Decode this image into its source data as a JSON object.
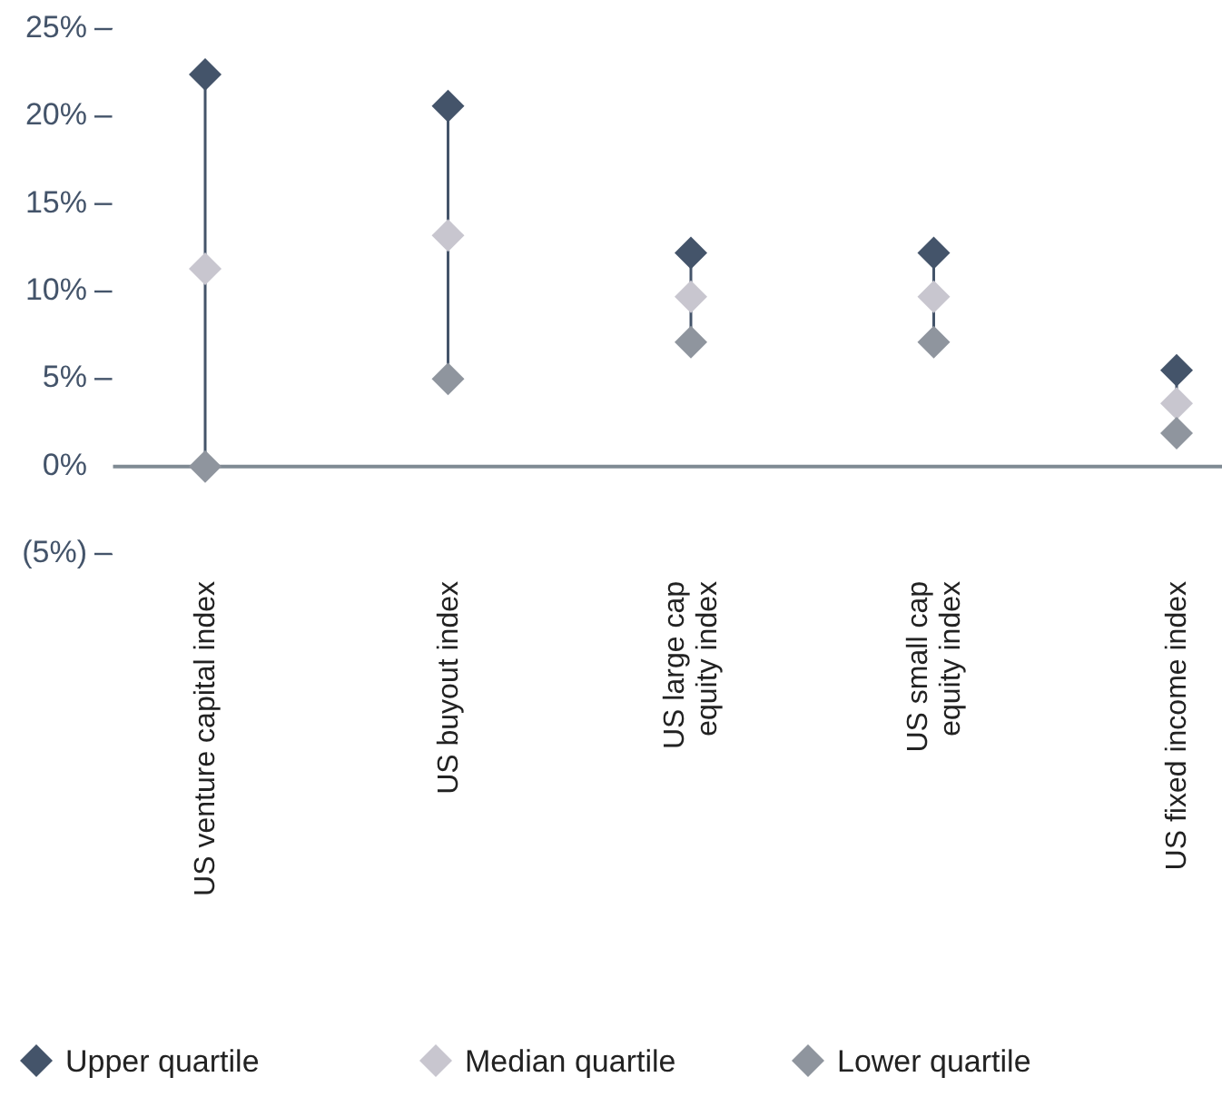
{
  "chart_data": {
    "type": "scatter",
    "categories": [
      "US venture capital index",
      "US buyout index",
      "US large cap\nequity index",
      "US small cap\nequity index",
      "US fixed income index"
    ],
    "series": [
      {
        "name": "Upper quartile",
        "color": "#44546a",
        "values": [
          22.4,
          20.6,
          12.2,
          12.2,
          5.5
        ]
      },
      {
        "name": "Median quartile",
        "color": "#c8c6cf",
        "values": [
          11.3,
          13.2,
          9.7,
          9.7,
          3.6
        ]
      },
      {
        "name": "Lower quartile",
        "color": "#8f959e",
        "values": [
          0,
          5.0,
          7.1,
          7.1,
          1.9
        ]
      }
    ],
    "ylim": [
      -5,
      25
    ],
    "yticks": [
      {
        "value": 25,
        "label": "25%"
      },
      {
        "value": 20,
        "label": "20%"
      },
      {
        "value": 15,
        "label": "15%"
      },
      {
        "value": 10,
        "label": "10%"
      },
      {
        "value": 5,
        "label": "5%"
      },
      {
        "value": 0,
        "label": "0%"
      },
      {
        "value": -5,
        "label": "(5%)"
      }
    ],
    "marker": "diamond",
    "legend": "bottom",
    "grid": false
  }
}
